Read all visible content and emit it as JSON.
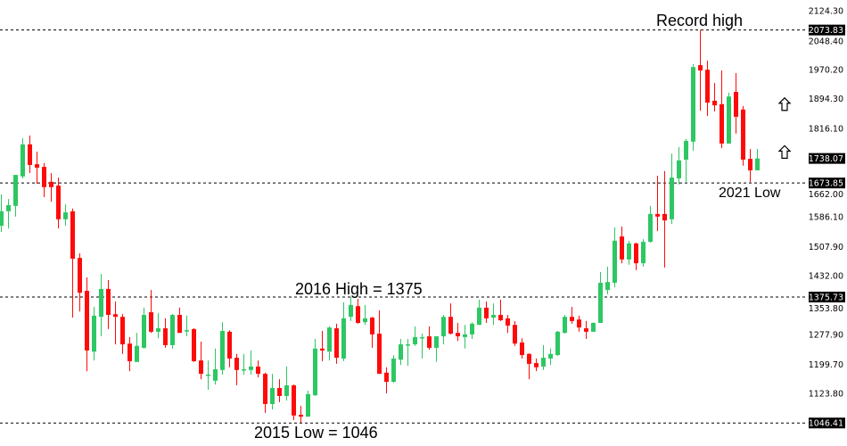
{
  "chart_data": {
    "type": "candlestick",
    "title": "",
    "xlabel": "",
    "ylabel": "",
    "ylim": [
      1030,
      2130
    ],
    "grid": false,
    "colors": {
      "up": "#2DC763",
      "down": "#FF0A0A",
      "level_line": "#000000",
      "tag_bg": "#000000"
    },
    "y_ticks": [
      "2124.30",
      "2048.40",
      "1970.20",
      "1894.30",
      "1816.10",
      "1662.00",
      "1586.10",
      "1507.90",
      "1432.00",
      "1353.80",
      "1277.90",
      "1199.70",
      "1123.80"
    ],
    "levels": [
      {
        "value": 2073.83,
        "label": "2073.83"
      },
      {
        "value": 1673.85,
        "label": "1673.85"
      },
      {
        "value": 1375.73,
        "label": "1375.73"
      },
      {
        "value": 1046.41,
        "label": "1046.41"
      }
    ],
    "current_price": {
      "value": 1738.07,
      "label": "1738.07"
    },
    "annotations": [
      {
        "text": "Record high",
        "price": 2124
      },
      {
        "text": "2021 Low",
        "price": 1650
      },
      {
        "text": "2016 High = 1375",
        "price": 1380
      },
      {
        "text": "2015 Low = 1046",
        "price": 1000
      }
    ],
    "signal_icons": [
      {
        "icon": "up-arrow-outline-icon",
        "price": 1880
      },
      {
        "icon": "up-arrow-outline-icon",
        "price": 1755
      }
    ],
    "ohlc": [
      [
        1562,
        1644,
        1546,
        1600
      ],
      [
        1600,
        1632,
        1555,
        1616
      ],
      [
        1614,
        1695,
        1586,
        1695
      ],
      [
        1691,
        1791,
        1686,
        1775
      ],
      [
        1775,
        1798,
        1700,
        1721
      ],
      [
        1723,
        1756,
        1672,
        1714
      ],
      [
        1716,
        1726,
        1637,
        1663
      ],
      [
        1677,
        1700,
        1625,
        1663
      ],
      [
        1667,
        1688,
        1555,
        1579
      ],
      [
        1579,
        1618,
        1562,
        1597
      ],
      [
        1600,
        1607,
        1322,
        1476
      ],
      [
        1478,
        1490,
        1338,
        1387
      ],
      [
        1392,
        1427,
        1182,
        1236
      ],
      [
        1233,
        1350,
        1210,
        1327
      ],
      [
        1324,
        1436,
        1273,
        1397
      ],
      [
        1397,
        1420,
        1292,
        1329
      ],
      [
        1331,
        1364,
        1252,
        1324
      ],
      [
        1324,
        1331,
        1227,
        1252
      ],
      [
        1254,
        1271,
        1182,
        1208
      ],
      [
        1206,
        1282,
        1206,
        1248
      ],
      [
        1243,
        1348,
        1241,
        1329
      ],
      [
        1336,
        1394,
        1282,
        1285
      ],
      [
        1285,
        1334,
        1268,
        1294
      ],
      [
        1294,
        1320,
        1243,
        1250
      ],
      [
        1250,
        1331,
        1241,
        1329
      ],
      [
        1329,
        1348,
        1282,
        1282
      ],
      [
        1287,
        1327,
        1273,
        1289
      ],
      [
        1292,
        1294,
        1206,
        1208
      ],
      [
        1210,
        1259,
        1161,
        1175
      ],
      [
        1171,
        1210,
        1133,
        1173
      ],
      [
        1157,
        1241,
        1147,
        1187
      ],
      [
        1185,
        1310,
        1173,
        1287
      ],
      [
        1285,
        1289,
        1192,
        1215
      ],
      [
        1217,
        1227,
        1145,
        1185
      ],
      [
        1185,
        1227,
        1173,
        1187
      ],
      [
        1185,
        1236,
        1173,
        1194
      ],
      [
        1194,
        1210,
        1166,
        1175
      ],
      [
        1175,
        1178,
        1073,
        1096
      ],
      [
        1096,
        1175,
        1082,
        1138
      ],
      [
        1138,
        1161,
        1101,
        1117
      ],
      [
        1117,
        1194,
        1105,
        1145
      ],
      [
        1145,
        1147,
        1054,
        1066
      ],
      [
        1068,
        1091,
        1047,
        1063
      ],
      [
        1063,
        1131,
        1063,
        1122
      ],
      [
        1119,
        1266,
        1117,
        1241
      ],
      [
        1241,
        1287,
        1208,
        1236
      ],
      [
        1233,
        1299,
        1210,
        1296
      ],
      [
        1294,
        1306,
        1201,
        1217
      ],
      [
        1215,
        1362,
        1208,
        1320
      ],
      [
        1324,
        1376,
        1313,
        1355
      ],
      [
        1352,
        1371,
        1306,
        1308
      ],
      [
        1310,
        1355,
        1303,
        1320
      ],
      [
        1322,
        1324,
        1243,
        1278
      ],
      [
        1280,
        1341,
        1175,
        1175
      ],
      [
        1178,
        1192,
        1124,
        1154
      ],
      [
        1154,
        1224,
        1152,
        1215
      ],
      [
        1212,
        1266,
        1198,
        1252
      ],
      [
        1250,
        1266,
        1196,
        1252
      ],
      [
        1252,
        1299,
        1248,
        1271
      ],
      [
        1268,
        1280,
        1215,
        1271
      ],
      [
        1273,
        1299,
        1238,
        1243
      ],
      [
        1243,
        1273,
        1206,
        1273
      ],
      [
        1273,
        1329,
        1252,
        1324
      ],
      [
        1324,
        1359,
        1278,
        1280
      ],
      [
        1282,
        1308,
        1261,
        1273
      ],
      [
        1271,
        1303,
        1241,
        1278
      ],
      [
        1278,
        1310,
        1266,
        1306
      ],
      [
        1303,
        1369,
        1303,
        1348
      ],
      [
        1348,
        1364,
        1308,
        1320
      ],
      [
        1322,
        1359,
        1303,
        1329
      ],
      [
        1329,
        1369,
        1313,
        1315
      ],
      [
        1320,
        1329,
        1282,
        1301
      ],
      [
        1303,
        1313,
        1248,
        1254
      ],
      [
        1257,
        1268,
        1215,
        1224
      ],
      [
        1227,
        1229,
        1161,
        1201
      ],
      [
        1203,
        1215,
        1182,
        1192
      ],
      [
        1194,
        1250,
        1185,
        1217
      ],
      [
        1215,
        1241,
        1198,
        1227
      ],
      [
        1224,
        1287,
        1222,
        1285
      ],
      [
        1282,
        1329,
        1280,
        1324
      ],
      [
        1324,
        1350,
        1306,
        1313
      ],
      [
        1317,
        1327,
        1285,
        1296
      ],
      [
        1294,
        1313,
        1266,
        1285
      ],
      [
        1285,
        1310,
        1285,
        1308
      ],
      [
        1308,
        1441,
        1308,
        1413
      ],
      [
        1394,
        1455,
        1383,
        1415
      ],
      [
        1413,
        1558,
        1401,
        1523
      ],
      [
        1534,
        1560,
        1464,
        1474
      ],
      [
        1474,
        1523,
        1460,
        1516
      ],
      [
        1516,
        1518,
        1446,
        1464
      ],
      [
        1464,
        1527,
        1455,
        1520
      ],
      [
        1520,
        1614,
        1518,
        1593
      ],
      [
        1593,
        1693,
        1548,
        1586
      ],
      [
        1593,
        1705,
        1453,
        1576
      ],
      [
        1579,
        1751,
        1567,
        1688
      ],
      [
        1686,
        1768,
        1670,
        1733
      ],
      [
        1735,
        1789,
        1677,
        1784
      ],
      [
        1782,
        1984,
        1758,
        1977
      ],
      [
        1982,
        2074,
        1863,
        1968
      ],
      [
        1970,
        1994,
        1849,
        1884
      ],
      [
        1889,
        1935,
        1861,
        1877
      ],
      [
        1880,
        1968,
        1765,
        1777
      ],
      [
        1777,
        1910,
        1777,
        1900
      ],
      [
        1912,
        1961,
        1803,
        1847
      ],
      [
        1866,
        1875,
        1719,
        1735
      ],
      [
        1737,
        1763,
        1676,
        1707
      ],
      [
        1707,
        1763,
        1707,
        1738
      ]
    ]
  }
}
